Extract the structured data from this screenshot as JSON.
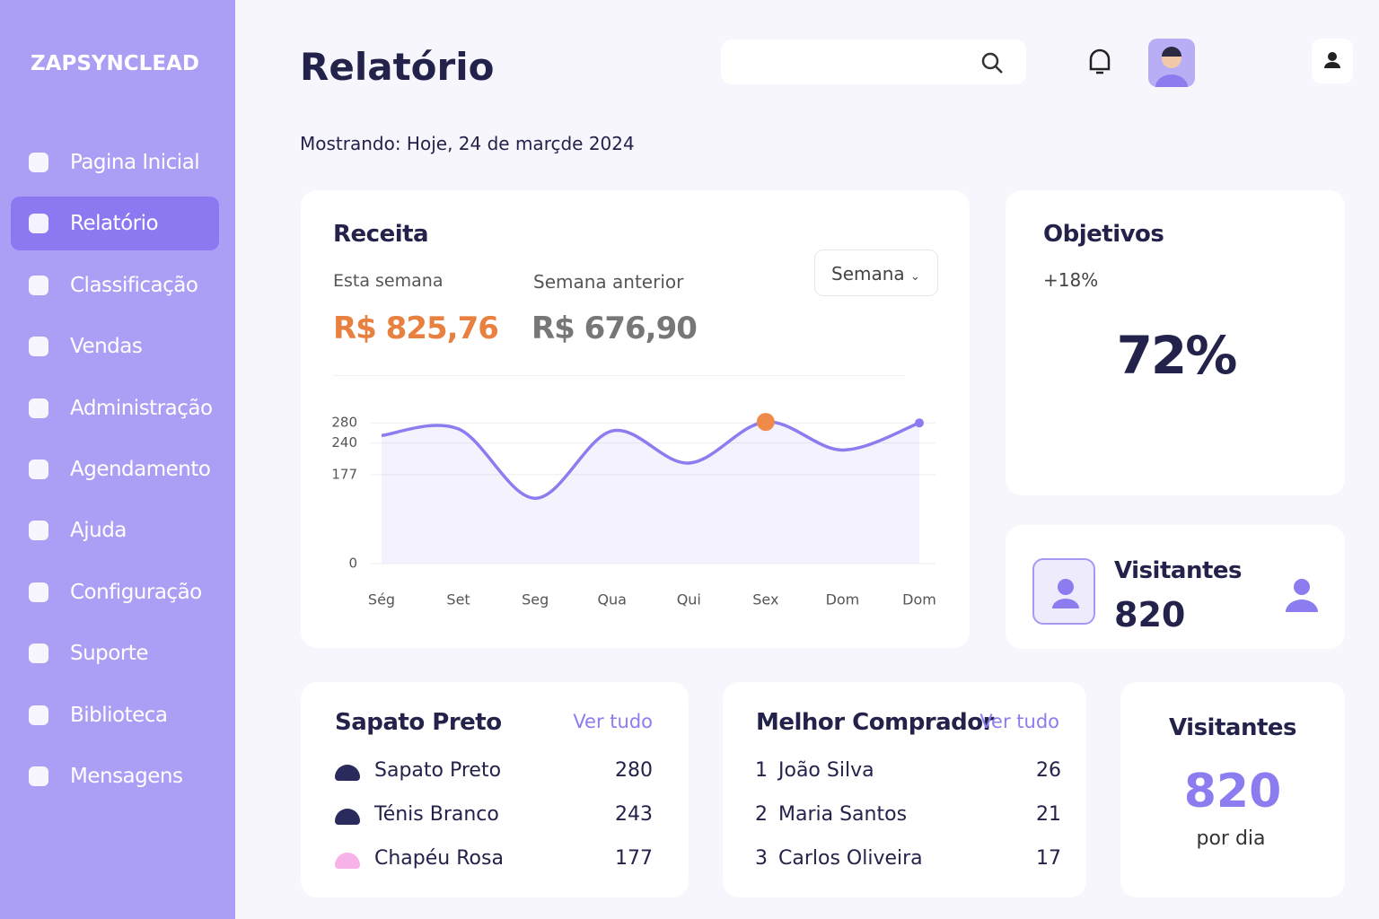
{
  "brand": "ZAPSYNCLEAD",
  "nav": {
    "items": [
      "Pagina Inicial",
      "Relatório",
      "Classificação",
      "Vendas",
      "Administração",
      "Agendamento",
      "Ajuda",
      "Configuração",
      "Suporte",
      "Biblioteca",
      "Mensagens"
    ],
    "active": 1
  },
  "header": {
    "title": "Relatório",
    "subtitle": "Mostrando: Hoje, 24 de marçde 2024"
  },
  "revenue": {
    "title": "Receita",
    "this_week_label": "Esta semana",
    "this_week": "R$ 825,76",
    "prev_week_label": "Semana anterior",
    "prev_week": "R$ 676,90",
    "period": "Semana"
  },
  "chart_data": {
    "type": "line",
    "categories": [
      "Ség",
      "Set",
      "Seg",
      "Qua",
      "Qui",
      "Sex",
      "Dom",
      "Dom"
    ],
    "values": [
      255,
      268,
      130,
      264,
      200,
      282,
      226,
      280
    ],
    "color": "#8b7cf0",
    "highlight_color": "#f08a4b",
    "highlight": 5,
    "ylim": [
      0,
      300
    ],
    "yticks": [
      0,
      177,
      240,
      280
    ],
    "grid": true
  },
  "goals": {
    "title": "Objetivos",
    "change": "+18%",
    "value": 72,
    "value_label": "72%"
  },
  "visitors_card": {
    "title": "Visitantes",
    "value": 820
  },
  "top_products": {
    "title": "Sapato Preto",
    "link": "Ver tudo",
    "rows": [
      [
        "Sapato Preto",
        280
      ],
      [
        "Ténis Branco",
        243
      ],
      [
        "Chapéu Rosa",
        177
      ]
    ]
  },
  "top_buyers": {
    "title": "Melhor Comprador",
    "link": "Ver tudo",
    "rows": [
      [
        1,
        "João Silva",
        26
      ],
      [
        2,
        "Maria Santos",
        21
      ],
      [
        3,
        "Carlos Oliveira",
        17
      ]
    ]
  },
  "daily_visitors": {
    "title": "Visitantes",
    "value": 820,
    "unit": "por dia"
  }
}
